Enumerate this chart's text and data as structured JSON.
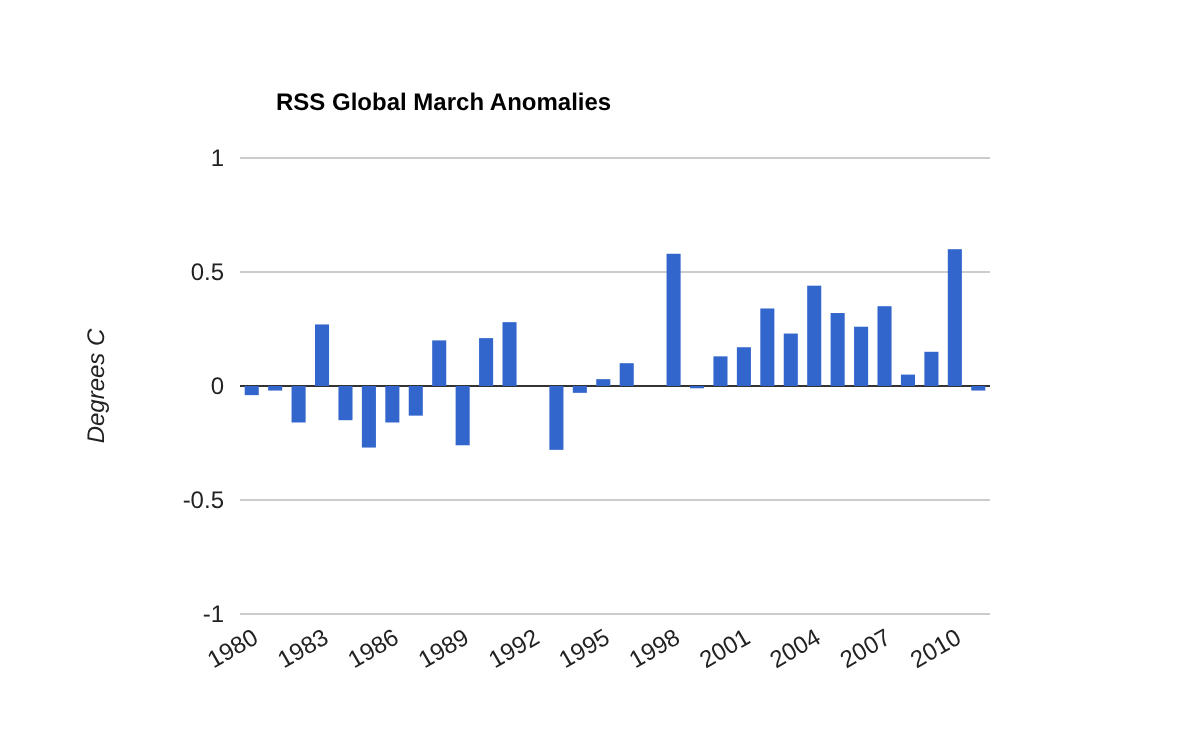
{
  "chart_data": {
    "type": "bar",
    "title": "RSS Global March Anomalies",
    "ylabel": "Degrees C",
    "categories": [
      "1980",
      null,
      null,
      "1983",
      null,
      null,
      "1986",
      null,
      null,
      "1989",
      null,
      null,
      "1992",
      null,
      null,
      "1995",
      null,
      null,
      "1998",
      null,
      null,
      "2001",
      null,
      null,
      "2004",
      null,
      null,
      "2007",
      null,
      null,
      "2010",
      null
    ],
    "values": [
      -0.04,
      -0.02,
      -0.16,
      0.27,
      -0.15,
      -0.27,
      -0.16,
      -0.13,
      0.2,
      -0.26,
      0.21,
      0.28,
      null,
      -0.28,
      -0.03,
      0.03,
      0.1,
      null,
      0.58,
      -0.01,
      0.13,
      0.17,
      0.34,
      0.23,
      0.44,
      0.32,
      0.26,
      0.35,
      0.05,
      0.15,
      0.6,
      -0.02
    ],
    "color": "#3366cc",
    "ylim": [
      -1,
      1
    ],
    "yticks": [
      -1,
      {
        "value": -0.5,
        "label": "-0.5"
      },
      0,
      {
        "value": 0.5,
        "label": "0.5"
      },
      1
    ],
    "grid": "y"
  }
}
